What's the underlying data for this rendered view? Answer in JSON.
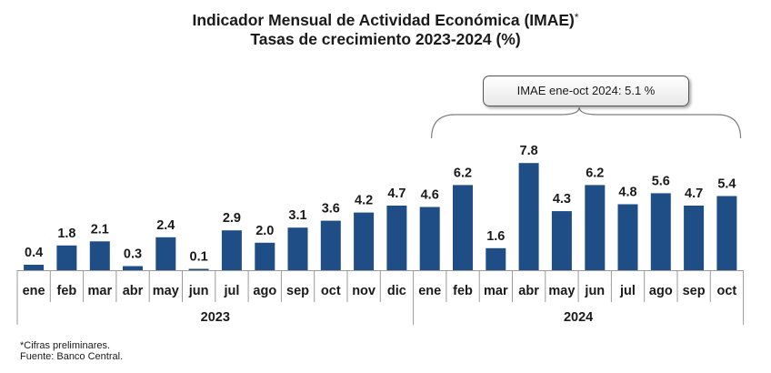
{
  "chart_data": {
    "type": "bar",
    "title": "Indicador Mensual de Actividad Económica (IMAE)",
    "title_mark": "*",
    "subtitle": "Tasas de crecimiento 2023-2024 (%)",
    "categories": [
      "ene",
      "feb",
      "mar",
      "abr",
      "may",
      "jun",
      "jul",
      "ago",
      "sep",
      "oct",
      "nov",
      "dic",
      "ene",
      "feb",
      "mar",
      "abr",
      "may",
      "jun",
      "jul",
      "ago",
      "sep",
      "oct"
    ],
    "values": [
      0.4,
      1.8,
      2.1,
      0.3,
      2.4,
      0.1,
      2.9,
      2.0,
      3.1,
      3.6,
      4.2,
      4.7,
      4.6,
      6.2,
      1.6,
      7.8,
      4.3,
      6.2,
      4.8,
      5.6,
      4.7,
      5.4
    ],
    "value_labels": [
      "0.4",
      "1.8",
      "2.1",
      "0.3",
      "2.4",
      "0.1",
      "2.9",
      "2.0",
      "3.1",
      "3.6",
      "4.2",
      "4.7",
      "4.6",
      "6.2",
      "1.6",
      "7.8",
      "4.3",
      "6.2",
      "4.8",
      "5.6",
      "4.7",
      "5.4"
    ],
    "groups": [
      {
        "label": "2023",
        "count": 12
      },
      {
        "label": "2024",
        "count": 10
      }
    ],
    "annotation": "IMAE ene-oct 2024: 5.1 %",
    "bar_color": "#1f4e86",
    "ylim": [
      0,
      8
    ],
    "grid": false,
    "legend": "none"
  },
  "footnotes": {
    "note": "*Cifras preliminares.",
    "source": "Fuente: Banco Central."
  }
}
